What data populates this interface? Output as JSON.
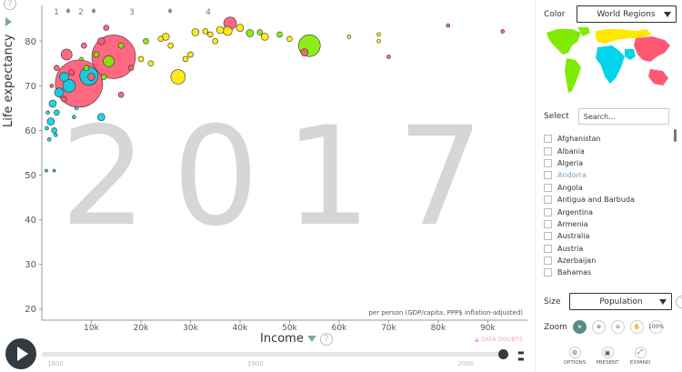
{
  "chart_data": {
    "type": "scatter",
    "year": "2017",
    "xlabel": "Income",
    "xunit": "per person (GDP/capita, PPP$ inflation-adjusted)",
    "ylabel": "Life expectancy",
    "xlim": [
      0,
      98000
    ],
    "ylim": [
      17.5,
      88
    ],
    "x_ticks": [
      "10k",
      "20k",
      "30k",
      "40k",
      "50k",
      "60k",
      "70k",
      "80k",
      "90k"
    ],
    "x_tick_values": [
      10000,
      20000,
      30000,
      40000,
      50000,
      60000,
      70000,
      80000,
      90000
    ],
    "y_ticks": [
      20,
      30,
      40,
      50,
      60,
      70,
      80
    ],
    "series": [
      {
        "color": "#ff5872",
        "points": [
          {
            "x": 7500,
            "y": 70.5,
            "r": 26
          },
          {
            "x": 14500,
            "y": 76.5,
            "r": 24
          },
          {
            "x": 10000,
            "y": 72,
            "r": 4
          },
          {
            "x": 5000,
            "y": 77,
            "r": 6
          },
          {
            "x": 3000,
            "y": 74,
            "r": 3
          },
          {
            "x": 12000,
            "y": 80,
            "r": 4
          },
          {
            "x": 16000,
            "y": 68,
            "r": 3
          },
          {
            "x": 4500,
            "y": 67,
            "r": 3
          },
          {
            "x": 13000,
            "y": 83,
            "r": 3
          },
          {
            "x": 38000,
            "y": 84,
            "r": 7
          },
          {
            "x": 53000,
            "y": 77.5,
            "r": 4
          },
          {
            "x": 70000,
            "y": 76.5,
            "r": 2
          },
          {
            "x": 82000,
            "y": 83.5,
            "r": 2
          },
          {
            "x": 93000,
            "y": 82.2,
            "r": 2
          },
          {
            "x": 2000,
            "y": 70,
            "r": 2
          },
          {
            "x": 6000,
            "y": 73,
            "r": 3
          },
          {
            "x": 18000,
            "y": 74,
            "r": 3
          },
          {
            "x": 8500,
            "y": 79,
            "r": 3
          }
        ]
      },
      {
        "color": "#00d5e9",
        "points": [
          {
            "x": 9500,
            "y": 72.2,
            "r": 10
          },
          {
            "x": 5500,
            "y": 70,
            "r": 7
          },
          {
            "x": 3500,
            "y": 68.5,
            "r": 5
          },
          {
            "x": 2200,
            "y": 66,
            "r": 4
          },
          {
            "x": 1800,
            "y": 62,
            "r": 4
          },
          {
            "x": 4500,
            "y": 72,
            "r": 5
          },
          {
            "x": 12000,
            "y": 63,
            "r": 4
          },
          {
            "x": 2500,
            "y": 60,
            "r": 3
          },
          {
            "x": 1500,
            "y": 58,
            "r": 2
          },
          {
            "x": 3000,
            "y": 64,
            "r": 3
          },
          {
            "x": 2800,
            "y": 59,
            "r": 2
          },
          {
            "x": 1000,
            "y": 60.5,
            "r": 2
          },
          {
            "x": 900,
            "y": 51,
            "r": 1.5
          },
          {
            "x": 2500,
            "y": 51,
            "r": 1.5
          },
          {
            "x": 6500,
            "y": 63,
            "r": 2
          },
          {
            "x": 7000,
            "y": 65,
            "r": 2
          },
          {
            "x": 1200,
            "y": 64,
            "r": 2
          }
        ]
      },
      {
        "color": "#7feb00",
        "points": [
          {
            "x": 54000,
            "y": 79,
            "r": 12
          },
          {
            "x": 13500,
            "y": 75.5,
            "r": 6
          },
          {
            "x": 9000,
            "y": 74,
            "r": 3
          },
          {
            "x": 12500,
            "y": 72,
            "r": 3
          },
          {
            "x": 44000,
            "y": 82,
            "r": 3
          },
          {
            "x": 48000,
            "y": 81.5,
            "r": 3
          },
          {
            "x": 16000,
            "y": 79,
            "r": 3
          },
          {
            "x": 11000,
            "y": 77,
            "r": 3
          },
          {
            "x": 8000,
            "y": 76,
            "r": 2
          },
          {
            "x": 42000,
            "y": 81.8,
            "r": 4
          },
          {
            "x": 21000,
            "y": 80,
            "r": 3
          }
        ]
      },
      {
        "color": "#ffe700",
        "points": [
          {
            "x": 27500,
            "y": 72,
            "r": 8
          },
          {
            "x": 25000,
            "y": 81,
            "r": 4
          },
          {
            "x": 31000,
            "y": 82,
            "r": 4
          },
          {
            "x": 36000,
            "y": 82.5,
            "r": 4
          },
          {
            "x": 37500,
            "y": 82.3,
            "r": 5
          },
          {
            "x": 40000,
            "y": 83,
            "r": 4
          },
          {
            "x": 30000,
            "y": 77,
            "r": 3
          },
          {
            "x": 24000,
            "y": 80.5,
            "r": 3
          },
          {
            "x": 26000,
            "y": 79,
            "r": 3
          },
          {
            "x": 45000,
            "y": 81,
            "r": 4
          },
          {
            "x": 50000,
            "y": 80.5,
            "r": 3
          },
          {
            "x": 34000,
            "y": 81.5,
            "r": 3
          },
          {
            "x": 29000,
            "y": 76,
            "r": 3
          },
          {
            "x": 33000,
            "y": 82.2,
            "r": 3
          },
          {
            "x": 68000,
            "y": 81.5,
            "r": 2
          },
          {
            "x": 68000,
            "y": 80,
            "r": 2
          },
          {
            "x": 62000,
            "y": 81,
            "r": 2
          },
          {
            "x": 20000,
            "y": 76,
            "r": 3
          },
          {
            "x": 22000,
            "y": 75,
            "r": 3
          },
          {
            "x": 35000,
            "y": 80,
            "r": 3
          }
        ]
      }
    ]
  },
  "timeline": {
    "start": "1800",
    "mid": "1900",
    "end": "2000",
    "top_markers": [
      "1",
      "2",
      "3",
      "4"
    ],
    "data_doubts": "DATA DOUBTS"
  },
  "panel": {
    "color_label": "Color",
    "color_value": "World Regions",
    "select_label": "Select",
    "search_placeholder": "Search...",
    "countries": [
      "Afghanistan",
      "Albania",
      "Algeria",
      "Andorra",
      "Angola",
      "Antigua and Barbuda",
      "Argentina",
      "Armenia",
      "Australia",
      "Austria",
      "Azerbaijan",
      "Bahamas"
    ],
    "highlighted_country": "Andorra",
    "size_label": "Size",
    "size_value": "Population",
    "zoom_label": "Zoom",
    "zoom_buttons": [
      "cursor-icon",
      "zoom-in-icon",
      "zoom-out-icon",
      "hand-icon",
      "100%"
    ],
    "bottom_buttons": [
      {
        "label": "OPTIONS",
        "icon": "gear-icon"
      },
      {
        "label": "PRESENT",
        "icon": "present-icon"
      },
      {
        "label": "EXPAND",
        "icon": "expand-icon"
      }
    ],
    "map_colors": {
      "americas": "#7feb00",
      "africa": "#00d5e9",
      "europe": "#ffe700",
      "asia": "#ff5872"
    }
  }
}
